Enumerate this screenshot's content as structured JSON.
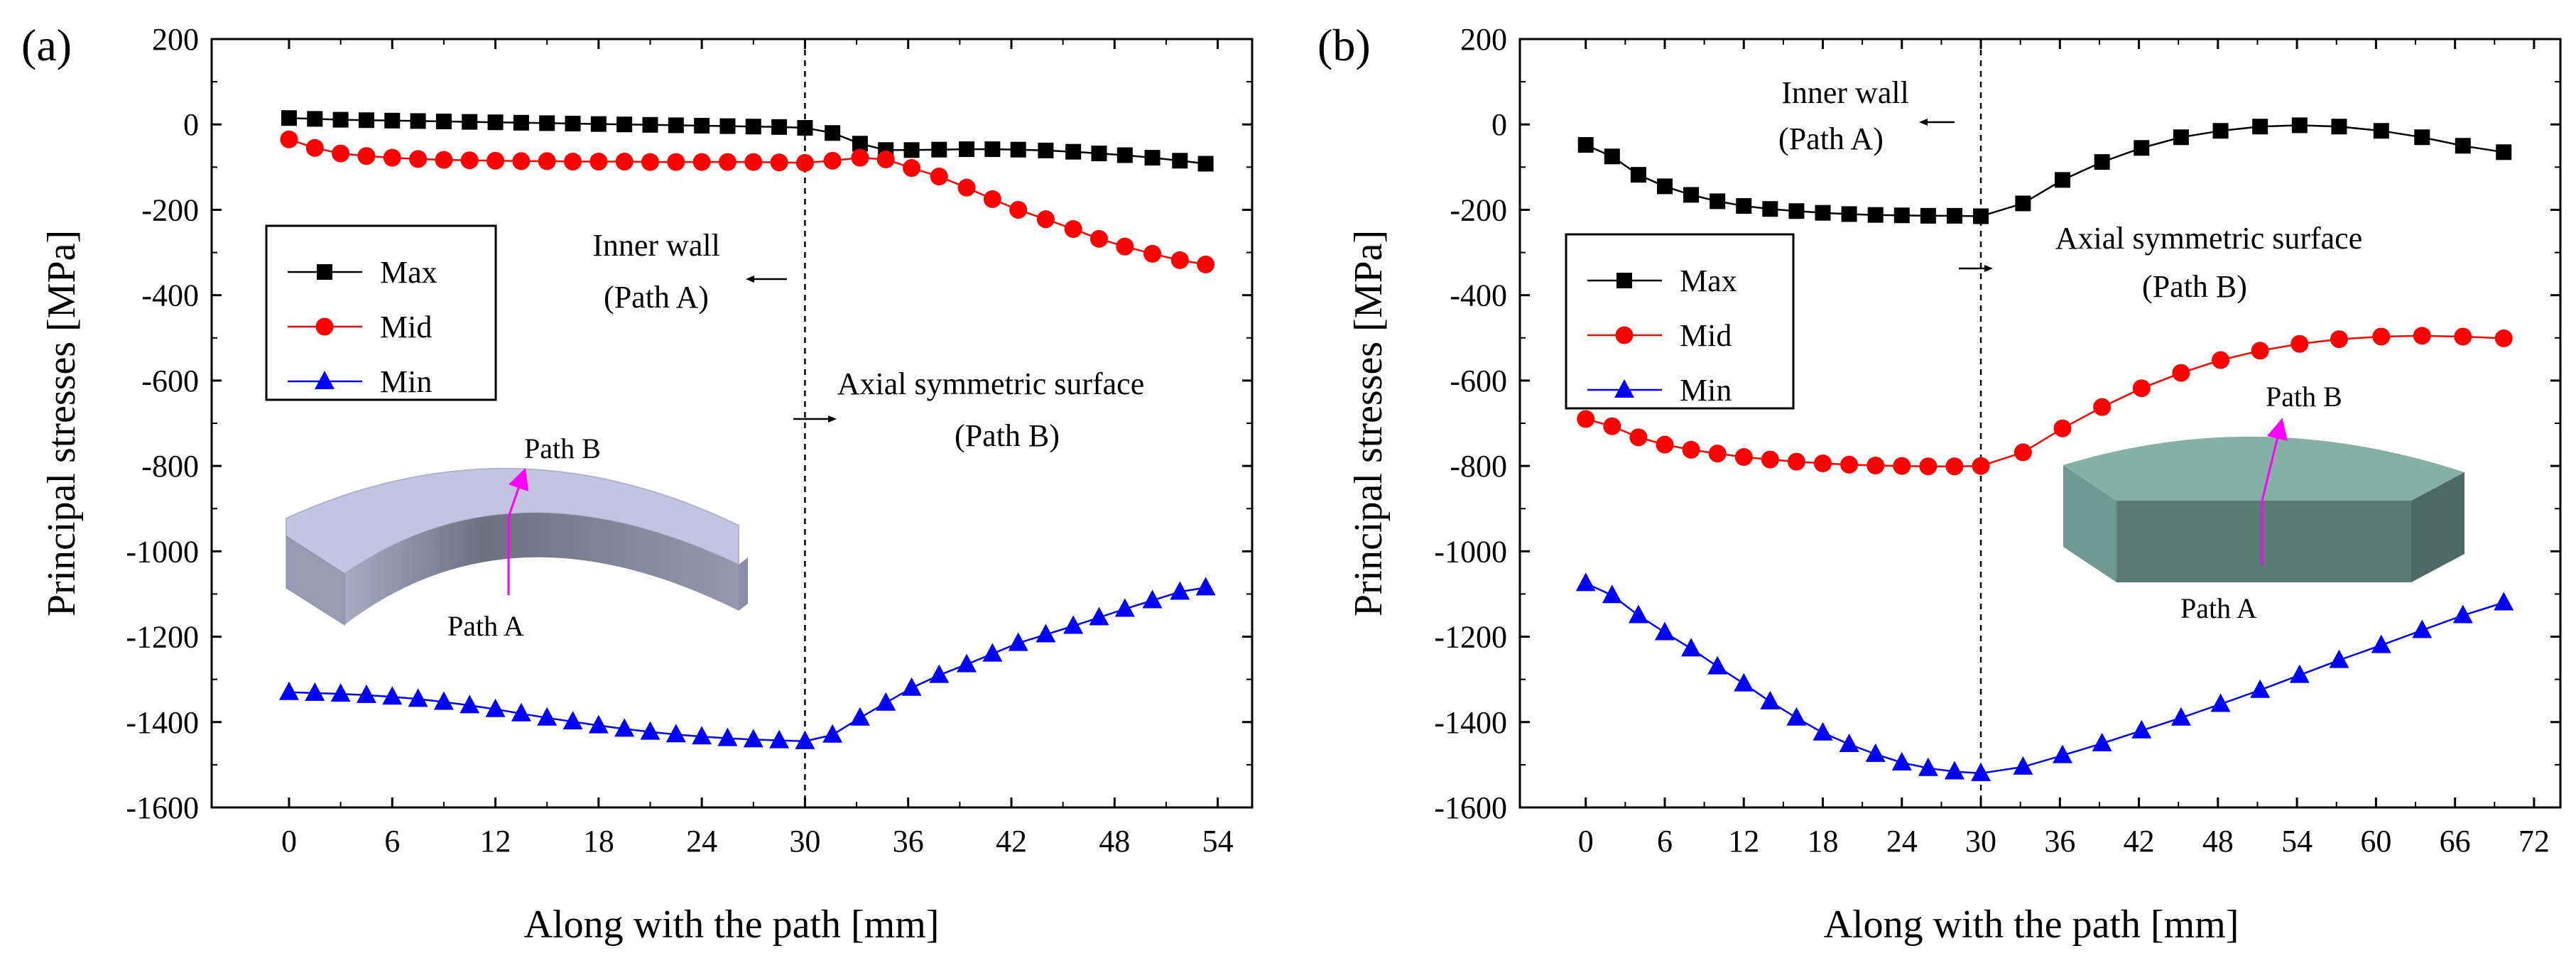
{
  "chart_data": [
    {
      "type": "line",
      "panel_label": "(a)",
      "xlabel": "Along with the path [mm]",
      "ylabel": "Principal stresses [MPa]",
      "xlim": [
        -4.5,
        56
      ],
      "ylim": [
        -1600,
        200
      ],
      "xticks": [
        "0",
        "6",
        "12",
        "18",
        "24",
        "30",
        "36",
        "42",
        "48",
        "54"
      ],
      "yticks": [
        "200",
        "0",
        "-200",
        "-400",
        "-600",
        "-800",
        "-1000",
        "-1200",
        "-1400",
        "-1600"
      ],
      "x": [
        0,
        1.5,
        3,
        4.5,
        6,
        7.5,
        9,
        10.5,
        12,
        13.5,
        15,
        16.5,
        18,
        19.5,
        21,
        22.5,
        24,
        25.5,
        27,
        28.5,
        30,
        31.6,
        33.2,
        34.7,
        36.2,
        37.8,
        39.4,
        40.9,
        42.4,
        44,
        45.6,
        47.1,
        48.6,
        50.2,
        51.8,
        53.3
      ],
      "series": [
        {
          "name": "Max",
          "color": "#000000",
          "marker": "square",
          "values": [
            15,
            13,
            11,
            10,
            9,
            8,
            7,
            6,
            5,
            4,
            3,
            2,
            1,
            0,
            -1,
            -2,
            -3,
            -4,
            -5,
            -6,
            -8,
            -20,
            -45,
            -60,
            -60,
            -59,
            -58,
            -58,
            -59,
            -61,
            -64,
            -68,
            -72,
            -78,
            -85,
            -92
          ]
        },
        {
          "name": "Mid",
          "color": "#ff0000",
          "marker": "circle",
          "values": [
            -35,
            -55,
            -68,
            -74,
            -78,
            -81,
            -83,
            -84,
            -85,
            -86,
            -86,
            -87,
            -87,
            -87,
            -88,
            -88,
            -88,
            -88,
            -88,
            -89,
            -90,
            -85,
            -78,
            -82,
            -102,
            -122,
            -148,
            -175,
            -200,
            -222,
            -245,
            -268,
            -286,
            -303,
            -318,
            -328
          ]
        },
        {
          "name": "Min",
          "color": "#0000ff",
          "marker": "triangle",
          "values": [
            -1330,
            -1332,
            -1334,
            -1337,
            -1341,
            -1346,
            -1353,
            -1361,
            -1370,
            -1380,
            -1390,
            -1399,
            -1408,
            -1416,
            -1423,
            -1429,
            -1434,
            -1438,
            -1441,
            -1443,
            -1445,
            -1430,
            -1390,
            -1355,
            -1320,
            -1290,
            -1265,
            -1240,
            -1215,
            -1195,
            -1175,
            -1155,
            -1135,
            -1115,
            -1095,
            -1085
          ]
        }
      ],
      "divider_x": 30,
      "annotations": {
        "inner_wall": "Inner wall",
        "path_a_paren": "(Path A)",
        "axial": "Axial symmetric surface",
        "path_b_paren": "(Path B)",
        "shape_path_b": "Path B",
        "shape_path_a": "Path A"
      },
      "legend_position": "left-middle"
    },
    {
      "type": "line",
      "panel_label": "(b)",
      "xlabel": "Along with the path [mm]",
      "ylabel": "Principal stresses [MPa]",
      "xlim": [
        -5,
        74
      ],
      "ylim": [
        -1600,
        200
      ],
      "xticks": [
        "0",
        "6",
        "12",
        "18",
        "24",
        "30",
        "36",
        "42",
        "48",
        "54",
        "60",
        "66",
        "72"
      ],
      "yticks": [
        "200",
        "0",
        "-200",
        "-400",
        "-600",
        "-800",
        "-1000",
        "-1200",
        "-1400",
        "-1600"
      ],
      "x": [
        0,
        2,
        4,
        6,
        8,
        10,
        12,
        14,
        16,
        18,
        20,
        22,
        24,
        26,
        28,
        30,
        33.2,
        36.2,
        39.2,
        42.2,
        45.2,
        48.2,
        51.2,
        54.2,
        57.2,
        60.4,
        63.5,
        66.6,
        69.7
      ],
      "series": [
        {
          "name": "Max",
          "color": "#000000",
          "marker": "square",
          "values": [
            -48,
            -75,
            -118,
            -145,
            -165,
            -180,
            -191,
            -198,
            -203,
            -207,
            -210,
            -212,
            -213,
            -214,
            -214,
            -215,
            -185,
            -130,
            -88,
            -55,
            -30,
            -15,
            -5,
            -2,
            -5,
            -15,
            -30,
            -50,
            -65
          ]
        },
        {
          "name": "Mid",
          "color": "#ff0000",
          "marker": "circle",
          "values": [
            -690,
            -707,
            -733,
            -750,
            -762,
            -771,
            -779,
            -785,
            -790,
            -794,
            -797,
            -799,
            -800,
            -801,
            -801,
            -800,
            -768,
            -712,
            -662,
            -618,
            -582,
            -552,
            -530,
            -514,
            -503,
            -497,
            -495,
            -497,
            -501
          ]
        },
        {
          "name": "Min",
          "color": "#0000ff",
          "marker": "triangle",
          "values": [
            -1075,
            -1103,
            -1150,
            -1190,
            -1228,
            -1270,
            -1310,
            -1352,
            -1390,
            -1425,
            -1452,
            -1475,
            -1495,
            -1508,
            -1516,
            -1520,
            -1505,
            -1478,
            -1450,
            -1420,
            -1390,
            -1358,
            -1325,
            -1290,
            -1255,
            -1220,
            -1185,
            -1150,
            -1120
          ]
        }
      ],
      "divider_x": 30,
      "annotations": {
        "inner_wall": "Inner wall",
        "path_a_paren": "(Path A)",
        "axial": "Axial symmetric surface",
        "path_b_paren": "(Path B)",
        "shape_path_b": "Path B",
        "shape_path_a": "Path A"
      },
      "legend_position": "left-middle"
    }
  ]
}
